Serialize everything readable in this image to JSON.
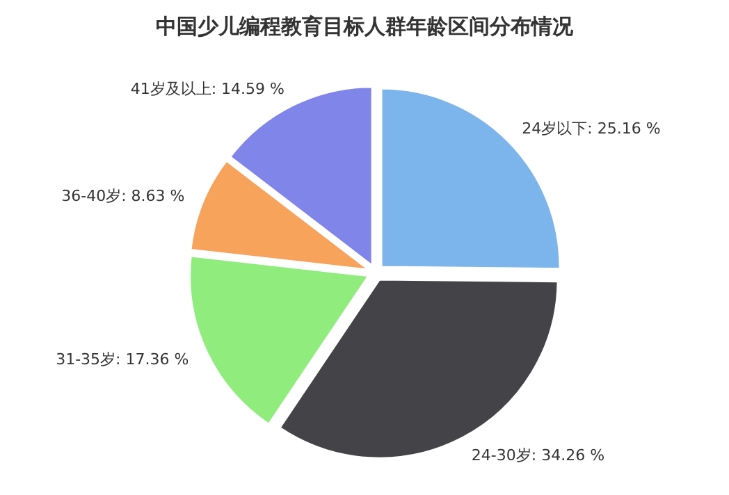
{
  "chart_data": {
    "type": "pie",
    "title": "中国少儿编程教育目标人群年龄区间分布情况",
    "categories": [
      "24岁以下",
      "24-30岁",
      "31-35岁",
      "36-40岁",
      "41岁及以上"
    ],
    "values": [
      25.16,
      34.26,
      17.36,
      8.63,
      14.59
    ],
    "value_labels": [
      "25.16 %",
      "34.26 %",
      "17.36 %",
      "8.63 %",
      "14.59 %"
    ],
    "colors": [
      "#7cb5ec",
      "#434348",
      "#90ed7d",
      "#f7a35c",
      "#8085e9"
    ],
    "legend": false
  }
}
